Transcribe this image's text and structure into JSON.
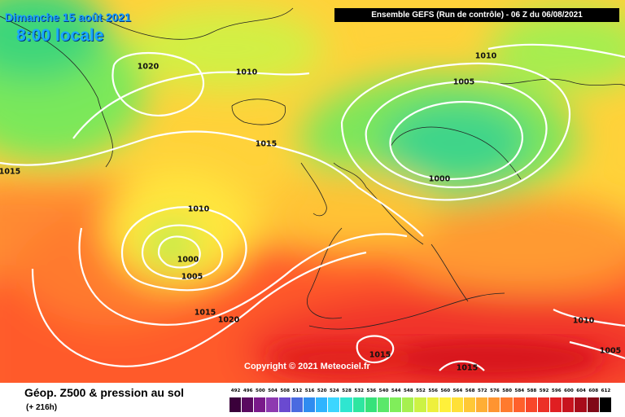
{
  "header": {
    "date": "Dimanche 15 août 2021",
    "time": "8:00 locale",
    "run_info": "Ensemble GEFS  (Run de contrôle)  - 06 Z du 06/08/2021"
  },
  "copyright": "Copyright © 2021 Meteociel.fr",
  "legend": {
    "title": "Géop. Z500 & pression au sol",
    "subtitle": "(+ 216h)",
    "ticks": [
      "492",
      "496",
      "500",
      "504",
      "508",
      "512",
      "516",
      "520",
      "524",
      "528",
      "532",
      "536",
      "540",
      "544",
      "548",
      "552",
      "556",
      "560",
      "564",
      "568",
      "572",
      "576",
      "580",
      "584",
      "588",
      "592",
      "596",
      "600",
      "604",
      "608",
      "612"
    ],
    "colors": [
      "#3a003a",
      "#5a0a60",
      "#7a1a8a",
      "#8e3ab0",
      "#6a4ad0",
      "#4a6ae0",
      "#2f8cf0",
      "#2fb4ff",
      "#3cd6ff",
      "#2fe6d0",
      "#2ee6a0",
      "#36e27a",
      "#5ae86a",
      "#80ee5a",
      "#a6f050",
      "#ccf244",
      "#eef03c",
      "#fff03a",
      "#ffe038",
      "#ffc836",
      "#ffae34",
      "#ff9430",
      "#ff7a2e",
      "#ff602c",
      "#f8462a",
      "#ec3026",
      "#e01e22",
      "#c8141e",
      "#a80c1a",
      "#800816",
      "#000000"
    ]
  },
  "isobars": [
    {
      "label": "1020"
    },
    {
      "label": "1010"
    },
    {
      "label": "1015"
    },
    {
      "label": "1010"
    },
    {
      "label": "1005"
    },
    {
      "label": "1000"
    },
    {
      "label": "1010"
    },
    {
      "label": "1000"
    },
    {
      "label": "1005"
    },
    {
      "label": "1015"
    },
    {
      "label": "1020"
    },
    {
      "label": "1015"
    },
    {
      "label": "1015"
    },
    {
      "label": "1010"
    },
    {
      "label": "1005"
    },
    {
      "label": "1015"
    }
  ]
}
